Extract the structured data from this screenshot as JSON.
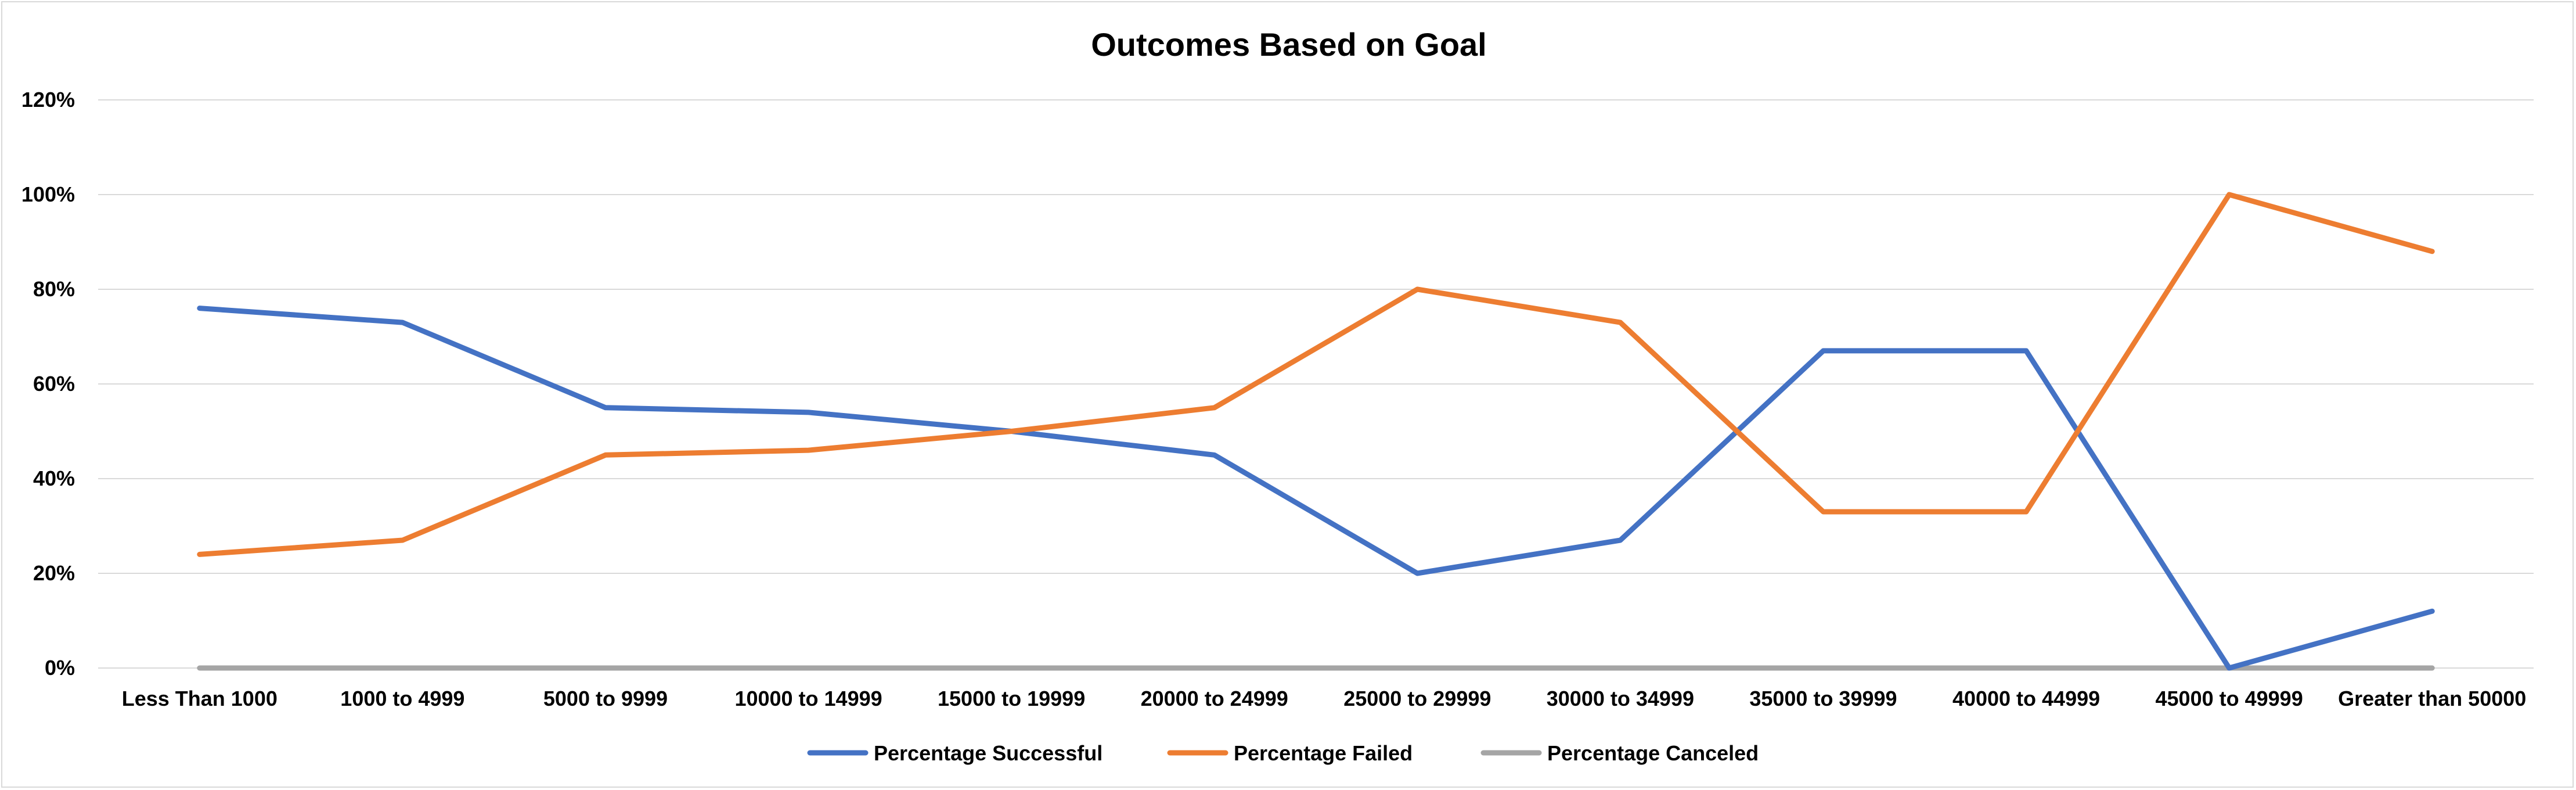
{
  "chart_data": {
    "type": "line",
    "title": "Outcomes Based on Goal",
    "xlabel": "",
    "ylabel": "",
    "categories": [
      "Less Than 1000",
      "1000 to 4999",
      "5000 to 9999",
      "10000 to 14999",
      "15000 to 19999",
      "20000 to 24999",
      "25000 to 29999",
      "30000 to 34999",
      "35000 to 39999",
      "40000 to 44999",
      "45000 to 49999",
      "Greater than 50000"
    ],
    "ylim": [
      0,
      120
    ],
    "y_ticks": [
      0,
      20,
      40,
      60,
      80,
      100,
      120
    ],
    "y_tick_labels": [
      "0%",
      "20%",
      "40%",
      "60%",
      "80%",
      "100%",
      "120%"
    ],
    "grid": "horizontal",
    "legend_position": "bottom",
    "series": [
      {
        "name": "Percentage Successful",
        "color": "#4472C4",
        "values": [
          76,
          73,
          55,
          54,
          50,
          45,
          20,
          27,
          67,
          67,
          0,
          12
        ]
      },
      {
        "name": "Percentage Failed",
        "color": "#ED7D31",
        "values": [
          24,
          27,
          45,
          46,
          50,
          55,
          80,
          73,
          33,
          33,
          100,
          88
        ]
      },
      {
        "name": "Percentage Canceled",
        "color": "#A5A5A5",
        "values": [
          0,
          0,
          0,
          0,
          0,
          0,
          0,
          0,
          0,
          0,
          0,
          0
        ]
      }
    ]
  }
}
